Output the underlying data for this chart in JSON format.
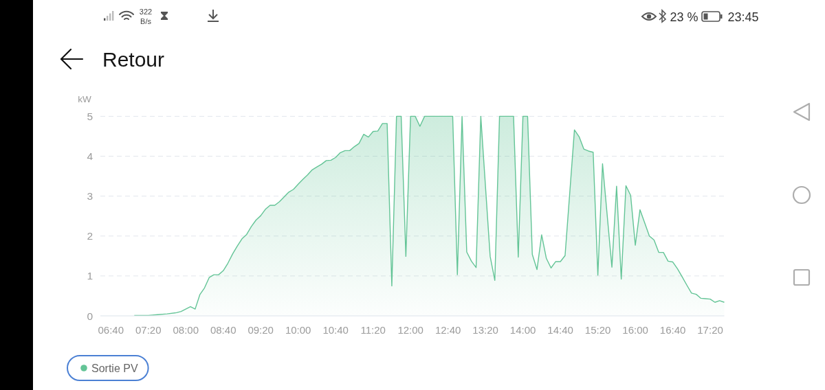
{
  "chart_data": {
    "type": "area",
    "title": "Retour",
    "ylabel": "kW",
    "annotations": [
      "322",
      "B/s",
      "23 %",
      "23:45"
    ],
    "x": [
      7.0833,
      7.3333,
      7.5,
      7.6667,
      7.8333,
      7.9167,
      8.0833,
      8.1667,
      8.25,
      8.3333,
      8.4167,
      8.5,
      8.5833,
      8.6667,
      8.75,
      8.8333,
      8.9167,
      9,
      9.0833,
      9.1667,
      9.25,
      9.3333,
      9.4167,
      9.5,
      9.5833,
      9.6667,
      9.75,
      9.8333,
      9.9167,
      10,
      10.0833,
      10.1667,
      10.25,
      10.3333,
      10.4167,
      10.5,
      10.5833,
      10.6667,
      10.75,
      10.8333,
      10.9167,
      11,
      11.0833,
      11.1667,
      11.25,
      11.3333,
      11.4167,
      11.5,
      11.5833,
      11.6667,
      11.75,
      11.8333,
      11.9167,
      12,
      12.0833,
      12.1667,
      12.25,
      12.75,
      12.8333,
      12.9167,
      13,
      13.0833,
      13.1667,
      13.25,
      13.4167,
      13.5,
      13.5833,
      13.8333,
      13.9167,
      14,
      14.0833,
      14.1667,
      14.25,
      14.3333,
      14.4167,
      14.5,
      14.5833,
      14.6667,
      14.75,
      14.9167,
      15,
      15.0833,
      15.1667,
      15.25,
      15.3333,
      15.4167,
      15.5833,
      15.6667,
      15.75,
      15.8333,
      15.9167,
      16,
      16.0833,
      16.1667,
      16.25,
      16.3333,
      16.4167,
      16.5,
      16.5833,
      16.6667,
      16.75,
      16.8333,
      16.9167,
      17,
      17.0833,
      17.1667,
      17.25,
      17.3333,
      17.4167,
      17.5,
      17.5833
    ],
    "series": [
      {
        "name": "Sortie PV",
        "color": "#63c496",
        "values": [
          0.01,
          0.01,
          0.03,
          0.05,
          0.08,
          0.11,
          0.23,
          0.17,
          0.53,
          0.7,
          0.96,
          1.03,
          1.03,
          1.13,
          1.32,
          1.55,
          1.75,
          1.93,
          2.04,
          2.24,
          2.4,
          2.51,
          2.67,
          2.77,
          2.77,
          2.86,
          2.98,
          3.1,
          3.17,
          3.3,
          3.42,
          3.53,
          3.66,
          3.73,
          3.8,
          3.89,
          3.9,
          3.97,
          4.09,
          4.14,
          4.14,
          4.24,
          4.32,
          4.55,
          4.48,
          4.62,
          4.63,
          4.82,
          4.82,
          0.75,
          5,
          5,
          1.49,
          5,
          5,
          4.75,
          5,
          5,
          1.03,
          5,
          1.6,
          1.37,
          1.21,
          5,
          1.49,
          0.89,
          5,
          5,
          1.47,
          5,
          5,
          1.54,
          1.16,
          2.03,
          1.44,
          1.2,
          1.36,
          1.36,
          1.51,
          4.66,
          4.49,
          4.18,
          4.13,
          4.1,
          1.02,
          3.81,
          1.22,
          3.25,
          0.92,
          3.26,
          3.02,
          1.77,
          2.66,
          2.33,
          2.0,
          1.9,
          1.59,
          1.59,
          1.37,
          1.35,
          1.18,
          0.98,
          0.77,
          0.57,
          0.54,
          0.44,
          0.43,
          0.42,
          0.34,
          0.38,
          0.34
        ]
      }
    ],
    "xlim": [
      6.48,
      17.5833
    ],
    "xticks": [
      {
        "value": 6.6667,
        "label": "06:40"
      },
      {
        "value": 7.3333,
        "label": "07:20"
      },
      {
        "value": 8,
        "label": "08:00"
      },
      {
        "value": 8.6667,
        "label": "08:40"
      },
      {
        "value": 9.3333,
        "label": "09:20"
      },
      {
        "value": 10,
        "label": "10:00"
      },
      {
        "value": 10.6667,
        "label": "10:40"
      },
      {
        "value": 11.3333,
        "label": "11:20"
      },
      {
        "value": 12,
        "label": "12:00"
      },
      {
        "value": 12.6667,
        "label": "12:40"
      },
      {
        "value": 13.3333,
        "label": "13:20"
      },
      {
        "value": 14,
        "label": "14:00"
      },
      {
        "value": 14.6667,
        "label": "14:40"
      },
      {
        "value": 15.3333,
        "label": "15:20"
      },
      {
        "value": 16,
        "label": "16:00"
      },
      {
        "value": 16.6667,
        "label": "16:40"
      },
      {
        "value": 17.3333,
        "label": "17:20"
      }
    ],
    "ylim": [
      0,
      5
    ],
    "yticks": [
      0,
      1,
      2,
      3,
      4,
      5
    ],
    "grid": "y",
    "legend": "bottom left"
  }
}
